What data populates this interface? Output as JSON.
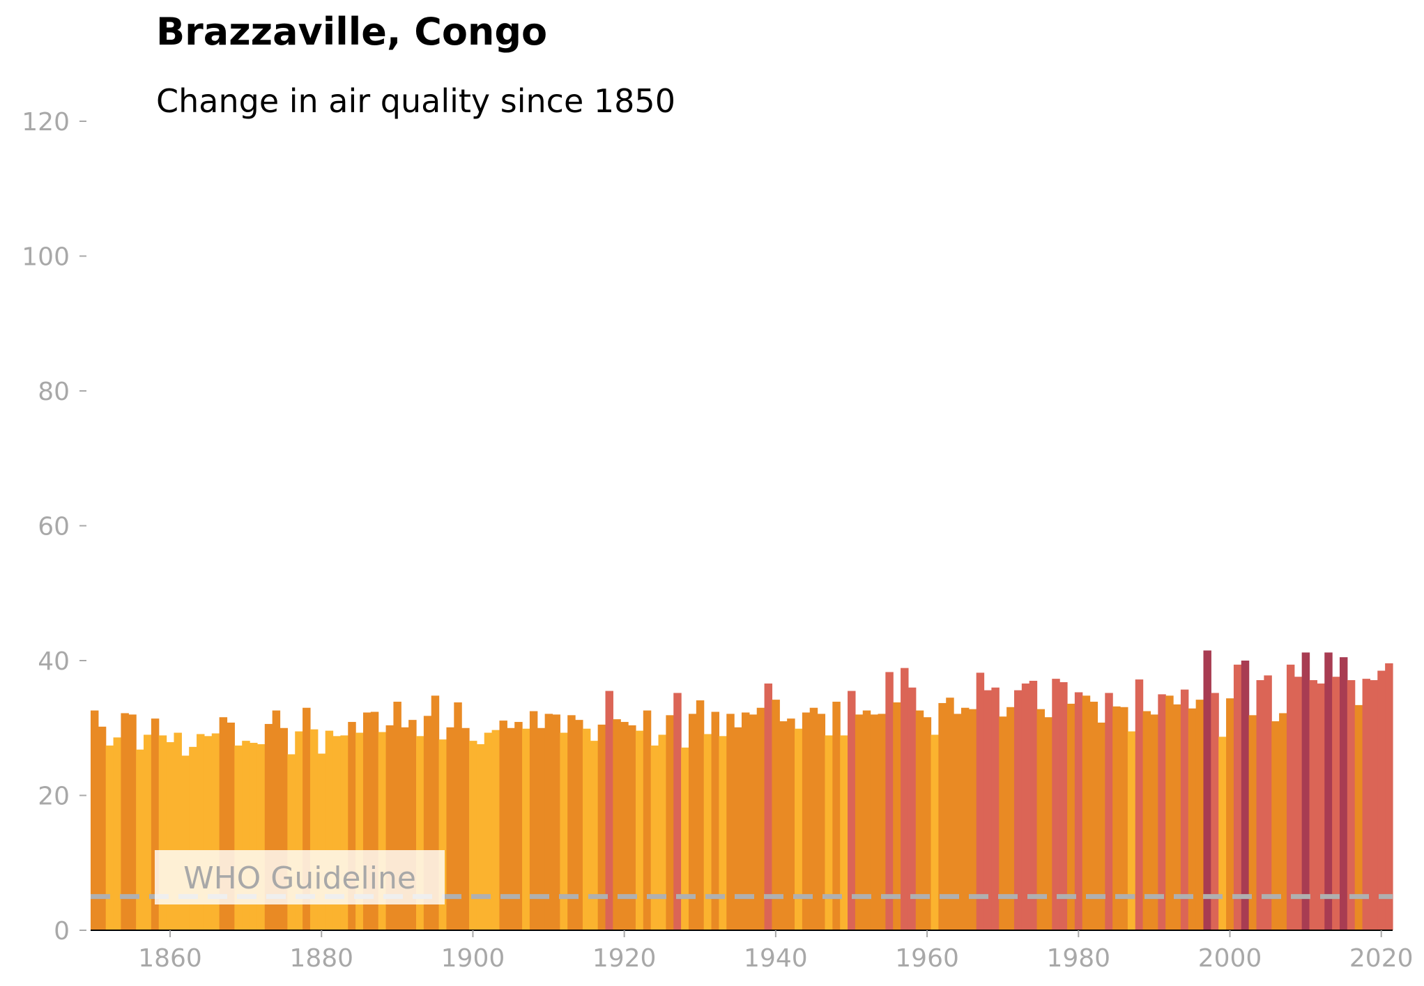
{
  "chart_data": {
    "type": "bar",
    "title": "Brazzaville, Congo",
    "subtitle": "Change in air quality since 1850",
    "xlim": [
      1850,
      2022
    ],
    "ylim": [
      0,
      120
    ],
    "x_ticks": [
      1860,
      1880,
      1900,
      1920,
      1940,
      1960,
      1980,
      2000,
      2020
    ],
    "y_ticks": [
      0,
      20,
      40,
      60,
      80,
      100,
      120
    ],
    "grid": false,
    "reference_line": {
      "label": "WHO Guideline",
      "value": 5,
      "color": "#b0b0b0",
      "style": "dashed"
    },
    "color_scale": [
      {
        "max": 30,
        "color": "#fbb32f"
      },
      {
        "max": 35,
        "color": "#e98a24"
      },
      {
        "max": 40,
        "color": "#db6556"
      },
      {
        "max": 999,
        "color": "#a83c52"
      }
    ],
    "years": [
      1850,
      1851,
      1852,
      1853,
      1854,
      1855,
      1856,
      1857,
      1858,
      1859,
      1860,
      1861,
      1862,
      1863,
      1864,
      1865,
      1866,
      1867,
      1868,
      1869,
      1870,
      1871,
      1872,
      1873,
      1874,
      1875,
      1876,
      1877,
      1878,
      1879,
      1880,
      1881,
      1882,
      1883,
      1884,
      1885,
      1886,
      1887,
      1888,
      1889,
      1890,
      1891,
      1892,
      1893,
      1894,
      1895,
      1896,
      1897,
      1898,
      1899,
      1900,
      1901,
      1902,
      1903,
      1904,
      1905,
      1906,
      1907,
      1908,
      1909,
      1910,
      1911,
      1912,
      1913,
      1914,
      1915,
      1916,
      1917,
      1918,
      1919,
      1920,
      1921,
      1922,
      1923,
      1924,
      1925,
      1926,
      1927,
      1928,
      1929,
      1930,
      1931,
      1932,
      1933,
      1934,
      1935,
      1936,
      1937,
      1938,
      1939,
      1940,
      1941,
      1942,
      1943,
      1944,
      1945,
      1946,
      1947,
      1948,
      1949,
      1950,
      1951,
      1952,
      1953,
      1954,
      1955,
      1956,
      1957,
      1958,
      1959,
      1960,
      1961,
      1962,
      1963,
      1964,
      1965,
      1966,
      1967,
      1968,
      1969,
      1970,
      1971,
      1972,
      1973,
      1974,
      1975,
      1976,
      1977,
      1978,
      1979,
      1980,
      1981,
      1982,
      1983,
      1984,
      1985,
      1986,
      1987,
      1988,
      1989,
      1990,
      1991,
      1992,
      1993,
      1994,
      1995,
      1996,
      1997,
      1998,
      1999,
      2000,
      2001,
      2002,
      2003,
      2004,
      2005,
      2006,
      2007,
      2008,
      2009,
      2010,
      2011,
      2012,
      2013,
      2014,
      2015,
      2016,
      2017,
      2018,
      2019,
      2020,
      2021
    ],
    "values": [
      32.6,
      30.2,
      27.4,
      28.6,
      32.2,
      32.0,
      26.8,
      29.0,
      31.4,
      28.9,
      27.9,
      29.3,
      25.9,
      27.2,
      29.1,
      28.8,
      29.2,
      31.6,
      30.8,
      27.4,
      28.1,
      27.8,
      27.6,
      30.6,
      32.6,
      30.0,
      26.1,
      29.5,
      33.0,
      29.8,
      26.2,
      29.6,
      28.8,
      28.9,
      30.9,
      29.3,
      32.3,
      32.4,
      29.4,
      30.4,
      33.9,
      30.1,
      31.2,
      28.8,
      31.8,
      34.8,
      28.3,
      30.1,
      33.8,
      30.0,
      28.1,
      27.6,
      29.3,
      29.7,
      31.1,
      30.0,
      30.9,
      29.9,
      32.5,
      30.0,
      32.1,
      32.0,
      29.3,
      31.9,
      31.2,
      29.9,
      28.1,
      30.5,
      35.5,
      31.3,
      30.9,
      30.4,
      29.6,
      32.6,
      27.4,
      29.0,
      31.9,
      35.2,
      27.1,
      32.1,
      34.1,
      29.1,
      32.4,
      28.8,
      32.1,
      30.1,
      32.3,
      32.0,
      33.0,
      36.6,
      34.2,
      31.0,
      31.4,
      29.9,
      32.3,
      33.0,
      32.1,
      28.9,
      33.9,
      28.9,
      35.5,
      32.0,
      32.6,
      32.0,
      32.1,
      38.3,
      33.8,
      38.9,
      36.0,
      32.6,
      31.6,
      29.0,
      33.7,
      34.5,
      32.1,
      33.0,
      32.8,
      38.2,
      35.6,
      36.0,
      31.7,
      33.1,
      35.6,
      36.6,
      37.0,
      32.8,
      31.6,
      37.3,
      36.8,
      33.6,
      35.3,
      34.8,
      33.9,
      30.8,
      35.2,
      33.2,
      33.1,
      29.5,
      37.2,
      32.5,
      32.0,
      35.0,
      34.8,
      33.5,
      35.7,
      32.9,
      34.2,
      41.5,
      35.2,
      28.7,
      34.4,
      39.4,
      40.0,
      31.9,
      37.1,
      37.8,
      31.0,
      32.2,
      39.4,
      37.6,
      41.2,
      37.1,
      36.6,
      41.2,
      37.6,
      40.5,
      37.1,
      33.4,
      37.3,
      37.1,
      38.5,
      39.6
    ]
  },
  "labels": {
    "x_ticks": [
      "1860",
      "1880",
      "1900",
      "1920",
      "1940",
      "1960",
      "1980",
      "2000",
      "2020"
    ],
    "y_ticks": [
      "0",
      "20",
      "40",
      "60",
      "80",
      "100",
      "120"
    ]
  }
}
